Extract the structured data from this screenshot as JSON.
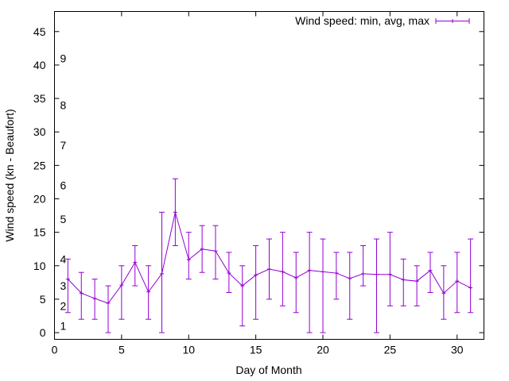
{
  "chart_data": {
    "type": "line",
    "title": "",
    "xlabel": "Day of Month",
    "ylabel": "Wind speed (kn - Beaufort)",
    "xlim": [
      0,
      32
    ],
    "ylim": [
      -1,
      48
    ],
    "xticks": [
      "0",
      "5",
      "10",
      "15",
      "20",
      "25",
      "30"
    ],
    "yticks": [
      "0",
      "5",
      "10",
      "15",
      "20",
      "25",
      "30",
      "35",
      "40",
      "45"
    ],
    "grid": false,
    "legend_position": "top-right",
    "series_color": "#9400d3",
    "beaufort_labels": [
      {
        "label": "1",
        "value": 1
      },
      {
        "label": "2",
        "value": 4
      },
      {
        "label": "3",
        "value": 7
      },
      {
        "label": "4",
        "value": 11
      },
      {
        "label": "5",
        "value": 17
      },
      {
        "label": "6",
        "value": 22
      },
      {
        "label": "7",
        "value": 28
      },
      {
        "label": "8",
        "value": 34
      },
      {
        "label": "9",
        "value": 41
      }
    ],
    "series": [
      {
        "name": "Wind speed: min, avg, max",
        "x": [
          1,
          2,
          3,
          4,
          5,
          6,
          7,
          8,
          9,
          10,
          11,
          12,
          13,
          14,
          15,
          16,
          17,
          18,
          19,
          20,
          21,
          22,
          23,
          24,
          25,
          26,
          27,
          28,
          29,
          30,
          31
        ],
        "avg": [
          8,
          5.9,
          5.1,
          4.4,
          7.1,
          10.5,
          6.1,
          8.8,
          18,
          10.9,
          12.5,
          12.2,
          8.9,
          7,
          8.6,
          9.5,
          9.1,
          8.2,
          9.3,
          9.1,
          8.9,
          8.1,
          8.8,
          8.7,
          8.7,
          7.9,
          7.7,
          9.3,
          5.9,
          7.7,
          6.7
        ],
        "min": [
          3,
          2,
          2,
          0,
          2,
          7,
          2,
          0,
          13,
          8,
          9,
          8,
          6,
          1,
          2,
          5,
          4,
          3,
          0,
          0,
          5,
          2,
          7,
          0,
          4,
          4,
          4,
          6,
          2,
          3,
          3
        ],
        "max": [
          11,
          9,
          8,
          7,
          10,
          13,
          10,
          18,
          23,
          15,
          16,
          16,
          12,
          10,
          13,
          14,
          15,
          12,
          15,
          14,
          12,
          12,
          13,
          14,
          15,
          11,
          10,
          12,
          10,
          12,
          14
        ]
      }
    ]
  }
}
